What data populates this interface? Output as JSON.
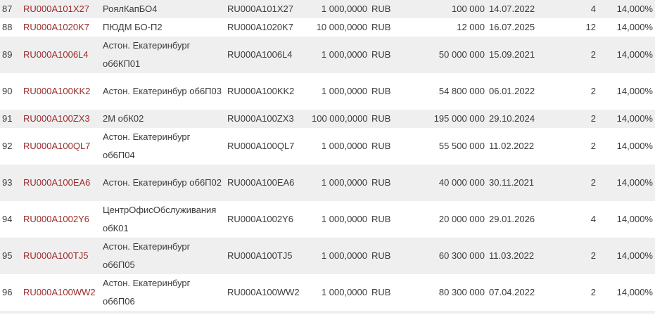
{
  "colors": {
    "link": "#9c2a2a",
    "row_alt": "#efefef",
    "text": "#3a3a3a"
  },
  "rows": [
    {
      "n": "87",
      "isin": "RU000A101X27",
      "name": "РоялКапБО4",
      "code": "RU000A101X27",
      "nominal": "1 000,0000",
      "currency": "RUB",
      "volume": "100 000",
      "date": "14.07.2022",
      "periods": "4",
      "rate": "14,000%"
    },
    {
      "n": "88",
      "isin": "RU000A1020K7",
      "name": "ПЮДМ БО-П2",
      "code": "RU000A1020K7",
      "nominal": "10 000,0000",
      "currency": "RUB",
      "volume": "12 000",
      "date": "16.07.2025",
      "periods": "12",
      "rate": "14,000%"
    },
    {
      "n": "89",
      "isin": "RU000A1006L4",
      "name": "Астон. Екатеринбург об6КП01",
      "code": "RU000A1006L4",
      "nominal": "1 000,0000",
      "currency": "RUB",
      "volume": "50 000 000",
      "date": "15.09.2021",
      "periods": "2",
      "rate": "14,000%"
    },
    {
      "n": "90",
      "isin": "RU000A100KK2",
      "name": "Астон. Екатеринбур об6П03",
      "code": "RU000A100KK2",
      "nominal": "1 000,0000",
      "currency": "RUB",
      "volume": "54 800 000",
      "date": "06.01.2022",
      "periods": "2",
      "rate": "14,000%"
    },
    {
      "n": "91",
      "isin": "RU000A100ZX3",
      "name": "2М обК02",
      "code": "RU000A100ZX3",
      "nominal": "100 000,0000",
      "currency": "RUB",
      "volume": "195 000 000",
      "date": "29.10.2024",
      "periods": "2",
      "rate": "14,000%"
    },
    {
      "n": "92",
      "isin": "RU000A100QL7",
      "name": "Астон. Екатеринбург об6П04",
      "code": "RU000A100QL7",
      "nominal": "1 000,0000",
      "currency": "RUB",
      "volume": "55 500 000",
      "date": "11.02.2022",
      "periods": "2",
      "rate": "14,000%"
    },
    {
      "n": "93",
      "isin": "RU000A100EA6",
      "name": "Астон. Екатеринбур об6П02",
      "code": "RU000A100EA6",
      "nominal": "1 000,0000",
      "currency": "RUB",
      "volume": "40 000 000",
      "date": "30.11.2021",
      "periods": "2",
      "rate": "14,000%"
    },
    {
      "n": "94",
      "isin": "RU000A1002Y6",
      "name": "ЦентрОфисОбслуживания обК01",
      "code": "RU000A1002Y6",
      "nominal": "1 000,0000",
      "currency": "RUB",
      "volume": "20 000 000",
      "date": "29.01.2026",
      "periods": "4",
      "rate": "14,000%"
    },
    {
      "n": "95",
      "isin": "RU000A100TJ5",
      "name": "Астон. Екатеринбург об6П05",
      "code": "RU000A100TJ5",
      "nominal": "1 000,0000",
      "currency": "RUB",
      "volume": "60 300 000",
      "date": "11.03.2022",
      "periods": "2",
      "rate": "14,000%"
    },
    {
      "n": "96",
      "isin": "RU000A100WW2",
      "name": "Астон. Екатеринбург об6П06",
      "code": "RU000A100WW2",
      "nominal": "1 000,0000",
      "currency": "RUB",
      "volume": "80 300 000",
      "date": "07.04.2022",
      "periods": "2",
      "rate": "14,000%"
    }
  ]
}
